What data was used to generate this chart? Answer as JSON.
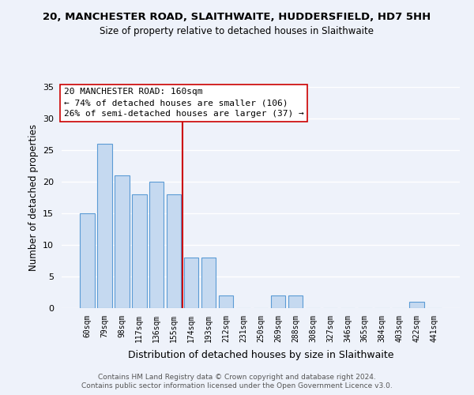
{
  "title_line1": "20, MANCHESTER ROAD, SLAITHWAITE, HUDDERSFIELD, HD7 5HH",
  "title_line2": "Size of property relative to detached houses in Slaithwaite",
  "xlabel": "Distribution of detached houses by size in Slaithwaite",
  "ylabel": "Number of detached properties",
  "bin_labels": [
    "60sqm",
    "79sqm",
    "98sqm",
    "117sqm",
    "136sqm",
    "155sqm",
    "174sqm",
    "193sqm",
    "212sqm",
    "231sqm",
    "250sqm",
    "269sqm",
    "288sqm",
    "308sqm",
    "327sqm",
    "346sqm",
    "365sqm",
    "384sqm",
    "403sqm",
    "422sqm",
    "441sqm"
  ],
  "bar_values": [
    15,
    26,
    21,
    18,
    20,
    18,
    8,
    8,
    2,
    0,
    0,
    2,
    2,
    0,
    0,
    0,
    0,
    0,
    0,
    1,
    0
  ],
  "bar_color": "#c5d9f0",
  "bar_edge_color": "#5b9bd5",
  "vline_x": 5.5,
  "vline_color": "#cc0000",
  "annotation_title": "20 MANCHESTER ROAD: 160sqm",
  "annotation_line1": "← 74% of detached houses are smaller (106)",
  "annotation_line2": "26% of semi-detached houses are larger (37) →",
  "annotation_box_color": "#ffffff",
  "annotation_box_edge": "#cc0000",
  "ylim": [
    0,
    35
  ],
  "yticks": [
    0,
    5,
    10,
    15,
    20,
    25,
    30,
    35
  ],
  "footer_line1": "Contains HM Land Registry data © Crown copyright and database right 2024.",
  "footer_line2": "Contains public sector information licensed under the Open Government Licence v3.0.",
  "bg_color": "#eef2fa"
}
